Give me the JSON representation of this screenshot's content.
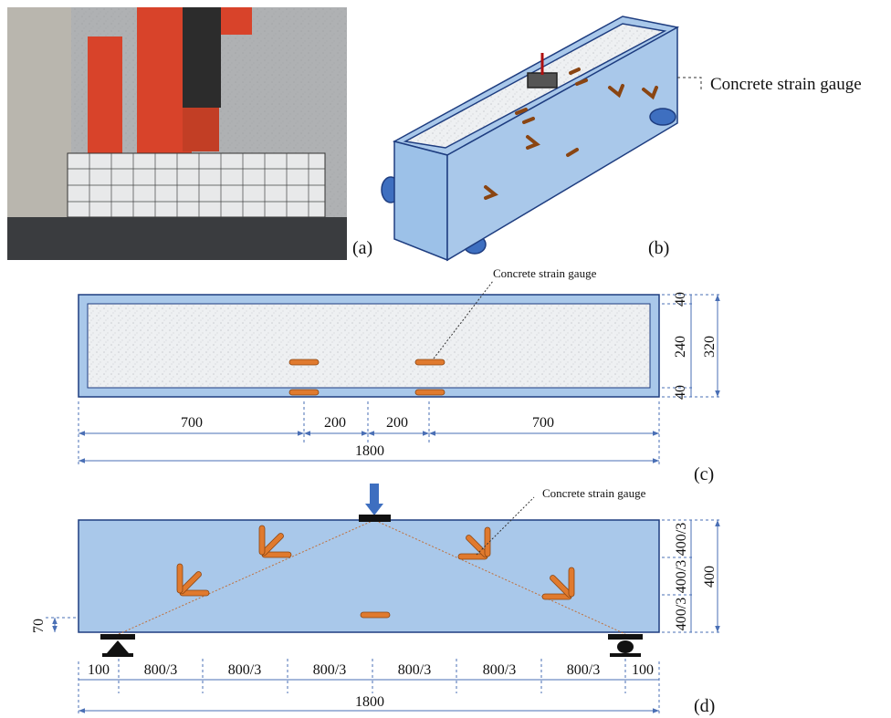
{
  "panels": {
    "a": {
      "label": "(a)"
    },
    "b": {
      "label": "(b)",
      "annotation": "Concrete strain gauge"
    },
    "c": {
      "label": "(c)",
      "annotation": "Concrete strain gauge",
      "bottom_dims": [
        700,
        200,
        200,
        700
      ],
      "total": 1800,
      "right_dims": [
        40,
        240,
        40
      ],
      "height": 320
    },
    "d": {
      "label": "(d)",
      "annotation": "Concrete strain gauge",
      "bottom_dims": [
        100,
        "800/3",
        "800/3",
        "800/3",
        "800/3",
        "800/3",
        "800/3",
        100
      ],
      "total": 1800,
      "right_dims": [
        "400/3",
        "400/3",
        "400/3"
      ],
      "height": 400,
      "gauge_height": 70
    }
  }
}
